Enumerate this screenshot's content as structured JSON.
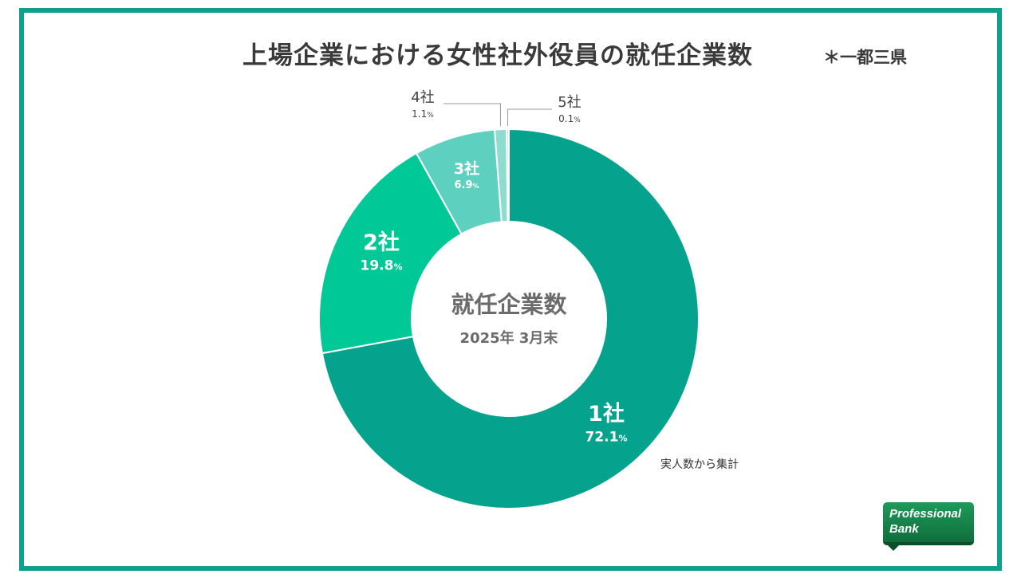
{
  "chart_data": {
    "type": "pie",
    "donut": true,
    "title": "上場企業における女性社外役員の就任企業数",
    "subtitle": "＊一都三県",
    "center_label": "就任企業数",
    "center_sublabel": "2025年 3月末",
    "note": "実人数から集計",
    "slices": [
      {
        "label": "1社",
        "value": 72.1,
        "value_text": "72.1",
        "color": "#05a38e"
      },
      {
        "label": "2社",
        "value": 19.8,
        "value_text": "19.8",
        "color": "#00c896"
      },
      {
        "label": "3社",
        "value": 6.9,
        "value_text": "6.9",
        "color": "#5ed0bf"
      },
      {
        "label": "4社",
        "value": 1.1,
        "value_text": "1.1",
        "color": "#8fdccf"
      },
      {
        "label": "5社",
        "value": 0.1,
        "value_text": "0.1",
        "color": "#b5e8df"
      }
    ],
    "unit": "%",
    "legend": "none"
  },
  "logo": {
    "line1": "Professional",
    "line2": "Bank"
  },
  "colors": {
    "frame": "#0fa08e",
    "text": "#3a3a3a"
  }
}
